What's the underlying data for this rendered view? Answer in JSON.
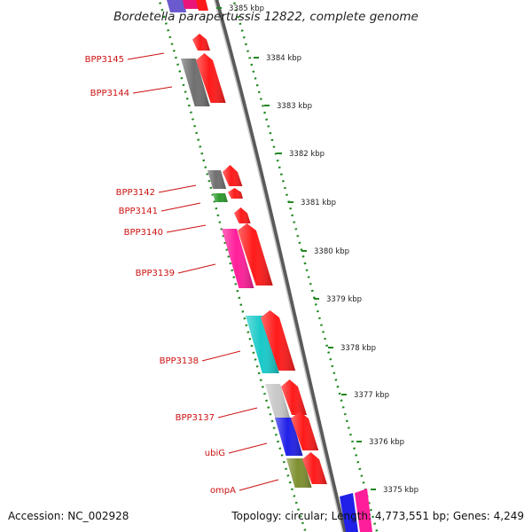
{
  "title": "Bordetella parapertussis 12822, complete genome",
  "accession": "Accession: NC_002928",
  "summary": "Topology: circular; Length: 4,773,551 bp; Genes: 4,249",
  "genes": [
    {
      "label": "BPP3145",
      "color": "#6f6f6f"
    },
    {
      "label": "BPP3144",
      "color": "#6f6f6f"
    },
    {
      "label": "BPP3142",
      "color": "#6f6f6f"
    },
    {
      "label": "BPP3141",
      "color": "#2e9a2e"
    },
    {
      "label": "BPP3140",
      "color": "#ff3030"
    },
    {
      "label": "BPP3139",
      "color": "#ff1e9a"
    },
    {
      "label": "BPP3138",
      "color": "#19c9c9"
    },
    {
      "label": "BPP3137",
      "color": "#c8c8c8"
    },
    {
      "label": "ubiG",
      "color": "#2020e8"
    },
    {
      "label": "ompA",
      "color": "#7e8f30"
    }
  ],
  "ticks": [
    "3385 kbp",
    "3384 kbp",
    "3383 kbp",
    "3382 kbp",
    "3381 kbp",
    "3380 kbp",
    "3379 kbp",
    "3378 kbp",
    "3377 kbp",
    "3376 kbp",
    "3375 kbp"
  ],
  "colors": {
    "strand_arrow": "#ff1a1a",
    "backbone": "#8a8a8a",
    "dotted_track": "#228822",
    "label_text": "#cc1111",
    "partial_purple": "#6a5acd"
  }
}
